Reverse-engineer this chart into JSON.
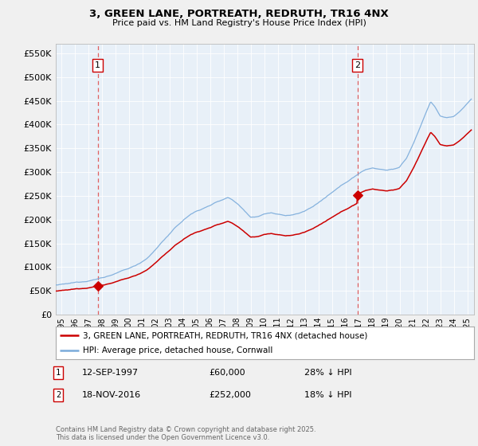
{
  "title1": "3, GREEN LANE, PORTREATH, REDRUTH, TR16 4NX",
  "title2": "Price paid vs. HM Land Registry's House Price Index (HPI)",
  "ylabel_ticks": [
    "£0",
    "£50K",
    "£100K",
    "£150K",
    "£200K",
    "£250K",
    "£300K",
    "£350K",
    "£400K",
    "£450K",
    "£500K",
    "£550K"
  ],
  "ylim": [
    0,
    570000
  ],
  "xlim_start": 1994.6,
  "xlim_end": 2025.5,
  "sale1_x": 1997.7,
  "sale1_y": 60000,
  "sale2_x": 2016.88,
  "sale2_y": 252000,
  "sale_color": "#cc0000",
  "hpi_color": "#7aabdb",
  "fig_bg": "#f0f0f0",
  "plot_bg": "#e8f0f8",
  "grid_color": "#ffffff",
  "vline_color": "#e06060",
  "legend_label1": "3, GREEN LANE, PORTREATH, REDRUTH, TR16 4NX (detached house)",
  "legend_label2": "HPI: Average price, detached house, Cornwall",
  "note1_num": "1",
  "note1_date": "12-SEP-1997",
  "note1_price": "£60,000",
  "note1_hpi": "28% ↓ HPI",
  "note2_num": "2",
  "note2_date": "18-NOV-2016",
  "note2_price": "£252,000",
  "note2_hpi": "18% ↓ HPI",
  "copyright": "Contains HM Land Registry data © Crown copyright and database right 2025.\nThis data is licensed under the Open Government Licence v3.0.",
  "hpi_key_x": [
    1994.5,
    1995,
    1995.5,
    1996,
    1996.5,
    1997,
    1997.5,
    1998,
    1998.5,
    1999,
    1999.5,
    2000,
    2000.5,
    2001,
    2001.5,
    2002,
    2002.5,
    2003,
    2003.5,
    2004,
    2004.5,
    2005,
    2005.5,
    2006,
    2006.5,
    2007,
    2007.3,
    2007.6,
    2008,
    2008.5,
    2009,
    2009.5,
    2010,
    2010.5,
    2011,
    2011.5,
    2012,
    2012.5,
    2013,
    2013.5,
    2014,
    2014.5,
    2015,
    2015.5,
    2016,
    2016.5,
    2017,
    2017.5,
    2018,
    2018.5,
    2019,
    2019.5,
    2020,
    2020.5,
    2021,
    2021.5,
    2022,
    2022.3,
    2022.6,
    2023,
    2023.5,
    2024,
    2024.5,
    2025.3
  ],
  "hpi_key_y": [
    62000,
    63000,
    64000,
    66000,
    68000,
    71000,
    74000,
    78000,
    82000,
    87000,
    92000,
    97000,
    103000,
    112000,
    123000,
    138000,
    155000,
    170000,
    185000,
    198000,
    210000,
    218000,
    224000,
    230000,
    238000,
    244000,
    248000,
    244000,
    236000,
    222000,
    208000,
    210000,
    215000,
    218000,
    214000,
    211000,
    212000,
    215000,
    220000,
    228000,
    238000,
    248000,
    258000,
    268000,
    278000,
    288000,
    298000,
    306000,
    310000,
    308000,
    306000,
    308000,
    312000,
    330000,
    360000,
    395000,
    430000,
    450000,
    440000,
    420000,
    415000,
    418000,
    430000,
    455000
  ]
}
